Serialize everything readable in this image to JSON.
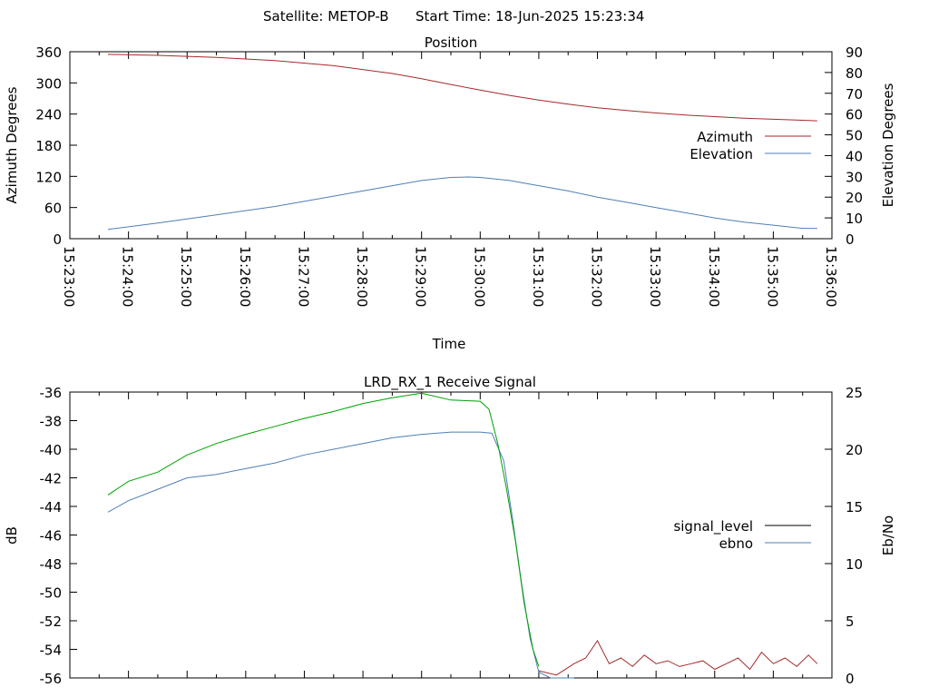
{
  "header": {
    "satellite_label": "Satellite: METOP-B",
    "start_time_label": "Start Time: 18-Jun-2025 15:23:34"
  },
  "chart_data": [
    {
      "type": "line",
      "title": "Position",
      "xlabel": "Time",
      "ylabel": "Azimuth Degrees",
      "y2label": "Elevation Degrees",
      "x_ticks": [
        "15:23:00",
        "15:24:00",
        "15:25:00",
        "15:26:00",
        "15:27:00",
        "15:28:00",
        "15:29:00",
        "15:30:00",
        "15:31:00",
        "15:32:00",
        "15:33:00",
        "15:34:00",
        "15:35:00",
        "15:36:00"
      ],
      "xlim_minutes": [
        0,
        13
      ],
      "ylim": [
        0,
        360
      ],
      "y_ticks": [
        "0",
        "60",
        "120",
        "180",
        "240",
        "300",
        "360"
      ],
      "y2lim": [
        0,
        90
      ],
      "y2_ticks": [
        "0",
        "10",
        "20",
        "30",
        "40",
        "50",
        "60",
        "70",
        "80",
        "90"
      ],
      "legend_position": "right",
      "series": [
        {
          "name": "Azimuth",
          "axis": "y",
          "color": "#a52a2a",
          "x_minutes": [
            0.65,
            1.5,
            2.5,
            3.5,
            4.5,
            5.5,
            6.0,
            6.5,
            7.0,
            7.5,
            8.0,
            8.5,
            9.0,
            9.5,
            10.0,
            10.5,
            11.0,
            11.5,
            12.0,
            12.5,
            12.75
          ],
          "y": [
            355,
            353,
            349,
            343,
            333,
            318,
            308,
            297,
            286,
            276,
            267,
            259,
            252,
            247,
            242,
            238,
            235,
            232,
            230,
            228,
            227
          ]
        },
        {
          "name": "Elevation",
          "axis": "y2",
          "color": "#4f7fb5",
          "x_minutes": [
            0.65,
            1.5,
            2.5,
            3.5,
            4.5,
            5.0,
            5.5,
            6.0,
            6.5,
            6.8,
            7.0,
            7.5,
            8.0,
            8.5,
            9.0,
            9.5,
            10.0,
            10.5,
            11.0,
            11.5,
            12.0,
            12.5,
            12.75
          ],
          "y": [
            4.5,
            7.5,
            11.5,
            15.5,
            20.5,
            23,
            25.5,
            28,
            29.5,
            29.7,
            29.5,
            28,
            25.5,
            23,
            20,
            17.5,
            15,
            12.5,
            10,
            8,
            6.5,
            5,
            5
          ]
        }
      ]
    },
    {
      "type": "line",
      "title": "LRD_RX_1 Receive Signal",
      "ylabel": "dB",
      "y2label": "Eb/No",
      "xlim_minutes": [
        0,
        13
      ],
      "ylim": [
        -56,
        -36
      ],
      "y_ticks": [
        "-36",
        "-38",
        "-40",
        "-42",
        "-44",
        "-46",
        "-48",
        "-50",
        "-52",
        "-54",
        "-56"
      ],
      "y2lim": [
        0,
        25
      ],
      "y2_ticks": [
        "0",
        "5",
        "10",
        "15",
        "20",
        "25"
      ],
      "legend_position": "right",
      "series": [
        {
          "name": "signal_level",
          "axis": "y",
          "color": "#000000",
          "x_minutes": [],
          "y": []
        },
        {
          "name": "ebno",
          "axis": "y2",
          "color": "#4f7fb5",
          "x_minutes": [
            0.65,
            1.0,
            1.5,
            2.0,
            2.5,
            3.0,
            3.5,
            4.0,
            4.5,
            5.0,
            5.5,
            6.0,
            6.5,
            7.0,
            7.2,
            7.4,
            7.55,
            7.7,
            7.85,
            8.0,
            8.2,
            8.4,
            8.6
          ],
          "y": [
            14.5,
            15.5,
            16.5,
            17.5,
            17.8,
            18.3,
            18.8,
            19.5,
            20.0,
            20.5,
            21.0,
            21.3,
            21.5,
            21.5,
            21.4,
            19.0,
            14.0,
            8.5,
            3.5,
            0.5,
            0,
            0,
            0
          ]
        },
        {
          "name": "",
          "axis": "y2",
          "color": "#00a000",
          "x_minutes": [
            0.65,
            1.0,
            1.5,
            2.0,
            2.5,
            3.0,
            3.5,
            4.0,
            4.5,
            5.0,
            5.5,
            6.0,
            6.5,
            7.0,
            7.15,
            7.3,
            7.45,
            7.6,
            7.75,
            7.9,
            8.0
          ],
          "y": [
            16,
            17.2,
            18.0,
            19.5,
            20.5,
            21.3,
            22.0,
            22.7,
            23.3,
            24.0,
            24.5,
            24.9,
            24.3,
            24.2,
            23.5,
            20.5,
            16.5,
            12,
            6.5,
            2.5,
            1
          ]
        },
        {
          "name": "",
          "axis": "y",
          "color": "#a52a2a",
          "x_minutes": [
            8.0,
            8.3,
            8.6,
            8.8,
            9.0,
            9.2,
            9.4,
            9.6,
            9.8,
            10.0,
            10.2,
            10.4,
            10.6,
            10.8,
            11.0,
            11.2,
            11.4,
            11.6,
            11.8,
            12.0,
            12.2,
            12.4,
            12.6,
            12.75
          ],
          "y": [
            -55.5,
            -55.8,
            -55.0,
            -54.6,
            -53.4,
            -55.0,
            -54.6,
            -55.2,
            -54.4,
            -55.0,
            -54.8,
            -55.2,
            -55.0,
            -54.8,
            -55.4,
            -55.0,
            -54.6,
            -55.4,
            -54.2,
            -55.0,
            -54.6,
            -55.2,
            -54.4,
            -55.0
          ]
        }
      ]
    }
  ]
}
